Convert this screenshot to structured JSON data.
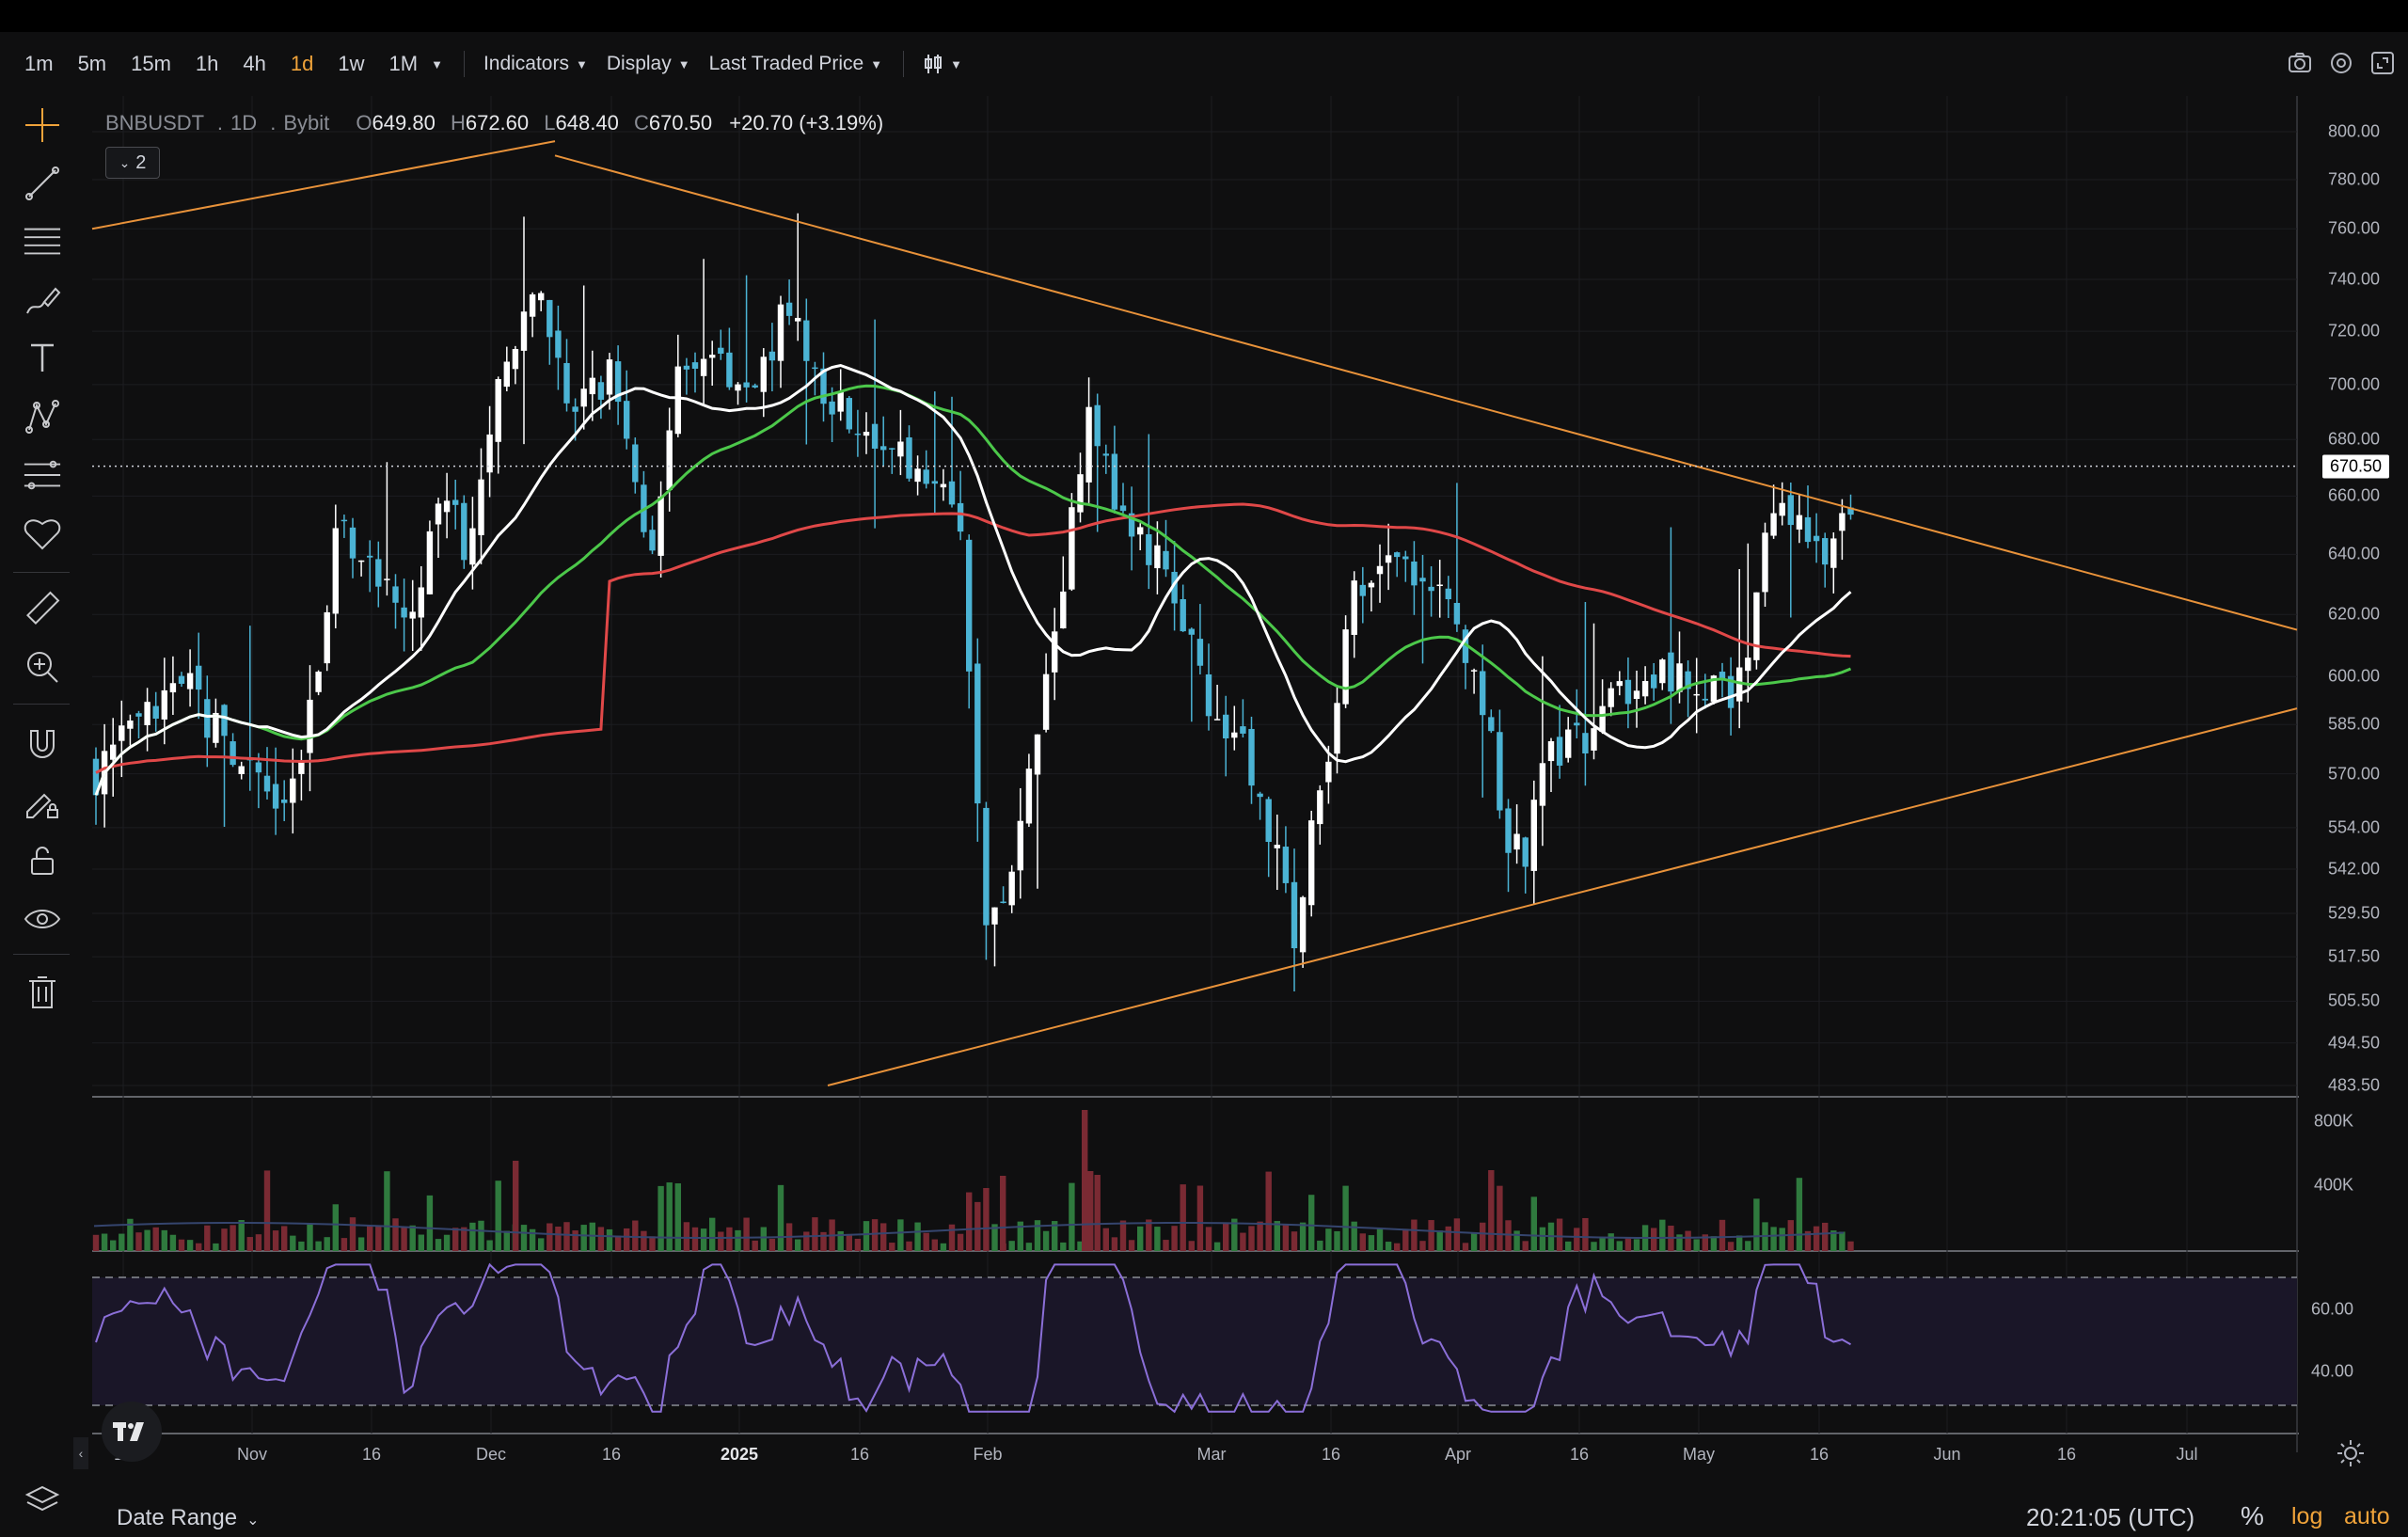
{
  "toolbar": {
    "timeframes": [
      {
        "label": "1m",
        "active": false
      },
      {
        "label": "5m",
        "active": false
      },
      {
        "label": "15m",
        "active": false
      },
      {
        "label": "1h",
        "active": false
      },
      {
        "label": "4h",
        "active": false
      },
      {
        "label": "1d",
        "active": true
      },
      {
        "label": "1w",
        "active": false
      },
      {
        "label": "1M",
        "active": false
      }
    ],
    "indicators_label": "Indicators",
    "display_label": "Display",
    "price_source_label": "Last Traded Price",
    "right_icons": [
      "camera-icon",
      "settings-gear-icon",
      "fullscreen-icon"
    ]
  },
  "left_tools": [
    "crosshair-icon",
    "trend-line-icon",
    "horizontal-lines-icon",
    "brush-icon",
    "text-icon",
    "pattern-icon",
    "fib-retracement-icon",
    "favorites-heart-icon",
    "ruler-icon",
    "zoom-in-icon",
    "magnet-icon",
    "lock-drawing-icon",
    "unlock-icon",
    "eye-icon",
    "trash-icon"
  ],
  "legend": {
    "symbol": "BNBUSDT",
    "interval": "1D",
    "exchange": "Bybit",
    "sep": ".",
    "open_label": "O",
    "open": "649.80",
    "high_label": "H",
    "high": "672.60",
    "low_label": "L",
    "low": "648.40",
    "close_label": "C",
    "close": "670.50",
    "change": "+20.70 (+3.19%)",
    "collapse_count": "2"
  },
  "price_axis": [
    "800.00",
    "780.00",
    "760.00",
    "740.00",
    "720.00",
    "700.00",
    "680.00",
    "660.00",
    "640.00",
    "620.00",
    "600.00",
    "585.00",
    "570.00",
    "554.00",
    "542.00",
    "529.50",
    "517.50",
    "505.50",
    "494.50",
    "483.50"
  ],
  "last_price": "670.50",
  "volume_axis": [
    "800K",
    "400K"
  ],
  "rsi_axis": [
    "60.00",
    "40.00"
  ],
  "time_axis": [
    {
      "label": "16",
      "bold": false
    },
    {
      "label": "Nov",
      "bold": false
    },
    {
      "label": "16",
      "bold": false
    },
    {
      "label": "Dec",
      "bold": false
    },
    {
      "label": "16",
      "bold": false
    },
    {
      "label": "2025",
      "bold": true
    },
    {
      "label": "16",
      "bold": false
    },
    {
      "label": "Feb",
      "bold": false
    },
    {
      "label": "Mar",
      "bold": false
    },
    {
      "label": "16",
      "bold": false
    },
    {
      "label": "Apr",
      "bold": false
    },
    {
      "label": "16",
      "bold": false
    },
    {
      "label": "May",
      "bold": false
    },
    {
      "label": "16",
      "bold": false
    },
    {
      "label": "Jun",
      "bold": false
    },
    {
      "label": "16",
      "bold": false
    },
    {
      "label": "Jul",
      "bold": false
    }
  ],
  "bottombar": {
    "date_range_label": "Date Range",
    "clock": "20:21:05 (UTC)",
    "percent_label": "%",
    "log_label": "log",
    "auto_label": "auto"
  },
  "colors": {
    "up": "#ffffff",
    "down": "#4bb3d4",
    "ma_white": "#ffffff",
    "ma_green": "#4cc84a",
    "ma_red": "#e04848",
    "trendline": "#e8923a",
    "rsi": "#8b6fd8",
    "vol_up": "#2f7a3e",
    "vol_down": "#7a2a33",
    "accent": "#f0a33a"
  },
  "chart_data": {
    "type": "candlestick",
    "symbol": "BNBUSDT",
    "interval": "1D",
    "ylim": [
      483.5,
      800
    ],
    "key_prices_approx": {
      "peak_dec": 792,
      "low_feb": 497,
      "low_mar": 510,
      "low_apr": 520,
      "last": 670.5
    },
    "moving_averages": [
      {
        "color": "white",
        "start": 565,
        "end": 608
      },
      {
        "color": "green",
        "start": 560,
        "end": 615
      },
      {
        "color": "red",
        "start": 578,
        "end": 640
      }
    ],
    "trendlines": [
      {
        "from": [
          596,
          790
        ],
        "to": [
          670,
          660
        ],
        "desc": "descending resistance"
      },
      {
        "from": [
          483,
          512
        ],
        "to": [
          670,
          596
        ],
        "desc": "ascending support"
      }
    ]
  }
}
